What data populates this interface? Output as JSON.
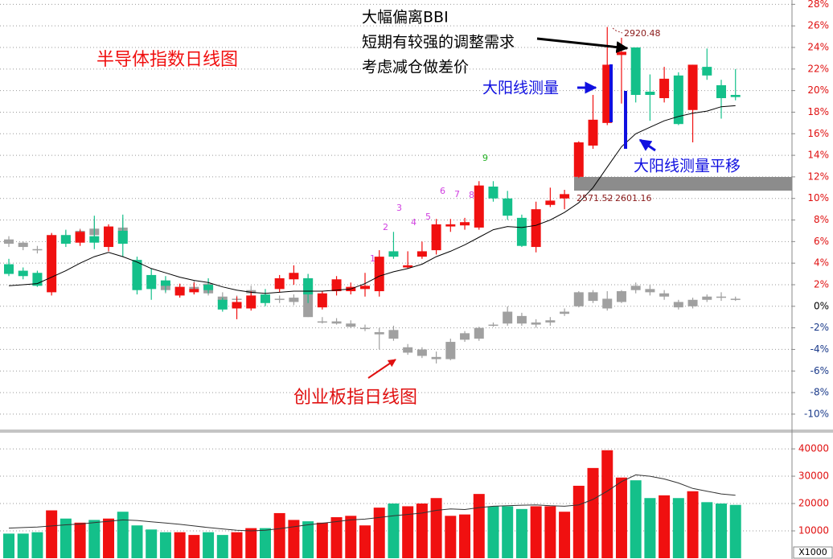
{
  "chart_data": [
    {
      "type": "candlestick",
      "title": "半导体指数日线图",
      "annotations": [
        "大幅偏离BBI",
        "短期有较强的调整需求",
        "考虑减仓做差价",
        "大阳线测量",
        "大阳线测量平移",
        "创业板指日线图"
      ],
      "td_counts": [
        1,
        2,
        3,
        4,
        5,
        6,
        7,
        8,
        9
      ],
      "price_labels": [
        2920.48,
        2571.52,
        2601.16
      ],
      "ylim": [
        -11.5,
        28.4
      ],
      "yticks": [
        {
          "value": 28,
          "label": "28%"
        },
        {
          "value": 26,
          "label": "26%"
        },
        {
          "value": 24,
          "label": "24%"
        },
        {
          "value": 22,
          "label": "22%"
        },
        {
          "value": 20,
          "label": "20%"
        },
        {
          "value": 18,
          "label": "18%"
        },
        {
          "value": 16,
          "label": "16%"
        },
        {
          "value": 14,
          "label": "14%"
        },
        {
          "value": 12,
          "label": "12%"
        },
        {
          "value": 10,
          "label": "10%"
        },
        {
          "value": 8,
          "label": "8%"
        },
        {
          "value": 6,
          "label": "6%"
        },
        {
          "value": 4,
          "label": "4%"
        },
        {
          "value": 2,
          "label": "2%"
        },
        {
          "value": 0,
          "label": "0%"
        },
        {
          "value": -2,
          "label": "-2%"
        },
        {
          "value": -4,
          "label": "-4%"
        },
        {
          "value": -6,
          "label": "-6%"
        },
        {
          "value": -8,
          "label": "-8%"
        },
        {
          "value": -10,
          "label": "-10%"
        }
      ],
      "grid": true,
      "series": [
        {
          "type": "candlestick",
          "up_color": "#a0a0a0",
          "down_color": "#a0a0a0",
          "open": [
            6.2,
            5.9,
            5.2,
            5.4,
            6.6,
            6.3,
            7.2,
            6.6,
            7.3,
            4.0,
            2.5,
            2.0,
            1.8,
            1.5,
            2.1,
            0.9,
            0.7,
            1.5,
            0.8,
            0.7,
            0.8,
            2.6,
            -1.4,
            -1.4,
            -1.6,
            -2.0,
            -2.4,
            -2.2,
            -3.8,
            -4.0,
            -4.7,
            -4.9,
            -3.1,
            -2.0,
            -1.7,
            -0.5,
            -0.9,
            -1.5,
            -1.3,
            -0.5,
            0.0,
            1.3,
            0.7,
            0.4,
            1.9,
            1.6,
            1.2,
            0.4,
            0.0,
            0.6,
            0.9,
            0.7
          ],
          "high": [
            6.5,
            6.0,
            5.6,
            6.7,
            7.0,
            7.2,
            8.1,
            7.3,
            8.2,
            4.3,
            2.9,
            2.4,
            2.0,
            2.4,
            2.5,
            1.3,
            1.0,
            1.9,
            1.2,
            1.0,
            1.1,
            3.0,
            -1.0,
            -1.1,
            -1.3,
            -1.7,
            -2.0,
            -1.8,
            -3.5,
            -3.8,
            -4.2,
            -3.0,
            -2.3,
            -1.9,
            -1.5,
            0.0,
            -0.6,
            -1.2,
            -1.0,
            -0.2,
            1.4,
            1.5,
            1.4,
            1.5,
            2.2,
            2.0,
            1.5,
            0.6,
            0.8,
            1.1,
            1.3,
            0.9
          ],
          "low": [
            5.5,
            5.2,
            4.9,
            5.0,
            5.8,
            6.0,
            6.4,
            6.2,
            5.7,
            2.0,
            1.7,
            1.2,
            1.1,
            1.1,
            1.0,
            0.3,
            0.1,
            0.8,
            0.1,
            0.3,
            0.1,
            -1.0,
            -1.6,
            -1.7,
            -2.0,
            -2.3,
            -4.0,
            -3.2,
            -4.5,
            -4.8,
            -5.3,
            -5.0,
            -3.3,
            -3.2,
            -1.9,
            -1.8,
            -1.8,
            -2.0,
            -1.8,
            -0.9,
            -0.1,
            0.3,
            -0.4,
            0.3,
            1.2,
            1.0,
            0.6,
            -0.3,
            -0.2,
            0.4,
            0.5,
            0.5
          ],
          "close": [
            5.8,
            5.5,
            5.3,
            6.6,
            6.0,
            7.0,
            6.6,
            7.0,
            6.0,
            2.2,
            2.0,
            1.5,
            1.3,
            1.8,
            1.2,
            0.5,
            0.6,
            1.2,
            0.4,
            0.6,
            0.4,
            -1.0,
            -1.4,
            -1.6,
            -1.9,
            -2.1,
            -2.6,
            -3.0,
            -4.3,
            -4.6,
            -4.9,
            -3.3,
            -2.5,
            -3.0,
            -1.8,
            -1.6,
            -1.6,
            -1.7,
            -1.5,
            -0.7,
            1.3,
            0.5,
            -0.2,
            1.4,
            1.5,
            1.3,
            0.9,
            -0.1,
            0.6,
            0.9,
            0.8,
            0.6
          ]
        },
        {
          "type": "candlestick",
          "up_color": "#f01010",
          "down_color": "#14c08a",
          "open": [
            3.9,
            3.3,
            3.1,
            1.3,
            6.6,
            5.9,
            6.5,
            5.5,
            7.0,
            4.3,
            2.9,
            2.4,
            1.0,
            1.3,
            2.0,
            0.6,
            -0.2,
            -0.2,
            1.1,
            1.6,
            2.5,
            2.6,
            -0.1,
            1.4,
            1.4,
            1.6,
            1.4,
            5.1,
            3.6,
            4.6,
            5.2,
            7.4,
            7.5,
            7.3,
            11.1,
            10.0,
            8.2,
            5.5,
            9.4,
            10.0,
            12.0,
            14.9,
            17.0,
            23.3,
            24.0,
            19.9,
            19.3,
            21.4,
            18.2,
            22.2,
            20.5,
            19.6
          ],
          "high": [
            4.4,
            3.6,
            3.3,
            6.8,
            7.1,
            7.1,
            8.4,
            7.6,
            8.5,
            4.6,
            3.5,
            2.8,
            2.1,
            2.2,
            2.6,
            0.8,
            0.9,
            1.4,
            1.6,
            2.9,
            3.8,
            3.0,
            1.4,
            2.8,
            2.2,
            3.1,
            5.2,
            6.9,
            5.1,
            6.0,
            8.1,
            8.1,
            8.2,
            11.6,
            11.6,
            10.7,
            8.5,
            9.7,
            11.0,
            10.8,
            15.3,
            19.6,
            25.9,
            24.9,
            24.0,
            21.5,
            22.2,
            21.7,
            22.4,
            23.9,
            21.0,
            22.0
          ],
          "low": [
            2.8,
            2.5,
            1.8,
            1.0,
            5.5,
            5.6,
            5.3,
            5.1,
            4.6,
            1.1,
            0.6,
            1.3,
            0.8,
            1.1,
            1.2,
            -0.5,
            -1.2,
            -0.4,
            0.0,
            1.3,
            2.0,
            0.3,
            -0.3,
            1.0,
            1.1,
            0.9,
            0.9,
            4.4,
            3.5,
            4.4,
            4.8,
            6.9,
            7.1,
            7.1,
            9.7,
            8.0,
            5.5,
            5.0,
            9.2,
            9.0,
            11.9,
            14.6,
            16.8,
            18.8,
            18.9,
            17.2,
            18.9,
            16.8,
            15.2,
            21.0,
            17.4,
            19.1
          ],
          "close": [
            3.0,
            2.8,
            1.9,
            6.6,
            5.8,
            6.9,
            5.9,
            7.4,
            5.8,
            1.5,
            1.6,
            1.9,
            1.8,
            1.6,
            1.5,
            -0.3,
            0.4,
            1.0,
            0.3,
            2.6,
            3.1,
            1.1,
            1.2,
            2.5,
            1.8,
            1.9,
            4.6,
            4.6,
            3.8,
            5.1,
            7.6,
            7.6,
            7.8,
            11.2,
            10.0,
            8.4,
            5.6,
            9.0,
            9.8,
            10.4,
            15.2,
            17.3,
            22.4,
            23.6,
            19.6,
            19.6,
            21.1,
            16.9,
            22.4,
            21.4,
            19.3,
            19.4
          ]
        },
        {
          "type": "line",
          "color": "#000000",
          "values": [
            1.9,
            2.0,
            2.1,
            2.7,
            3.3,
            4.0,
            4.6,
            5.0,
            4.6,
            4.1,
            3.5,
            3.1,
            2.7,
            2.4,
            2.2,
            1.8,
            1.5,
            1.3,
            1.2,
            1.3,
            1.4,
            1.4,
            1.4,
            1.5,
            1.6,
            2.1,
            2.8,
            3.2,
            3.5,
            3.9,
            4.6,
            5.1,
            5.7,
            6.4,
            7.1,
            7.4,
            7.3,
            7.5,
            8.0,
            8.7,
            9.6,
            11.0,
            12.9,
            14.8,
            16.0,
            16.6,
            17.2,
            17.6,
            17.9,
            18.1,
            18.5,
            18.6
          ]
        }
      ]
    },
    {
      "type": "bar",
      "unit_label": "X1000",
      "ylim": [
        0,
        46200
      ],
      "yticks": [
        10000,
        20000,
        30000,
        40000
      ],
      "up_color": "#f01010",
      "down_color": "#14c08a",
      "values": [
        9000,
        9000,
        9500,
        17500,
        14500,
        13000,
        14000,
        14500,
        17000,
        12000,
        10500,
        9500,
        9500,
        8500,
        9500,
        8500,
        9500,
        11000,
        11000,
        16500,
        14000,
        13500,
        13000,
        15000,
        15500,
        12000,
        18500,
        20000,
        19000,
        20000,
        22000,
        15500,
        16000,
        23500,
        19000,
        19000,
        18000,
        19000,
        19000,
        17000,
        26500,
        33000,
        39500,
        29500,
        28500,
        22000,
        23000,
        22000,
        24500,
        20500,
        20000,
        19500
      ],
      "line": {
        "color": "#333333",
        "values": [
          11000,
          11200,
          11400,
          11800,
          12200,
          12500,
          13000,
          13500,
          14000,
          13800,
          13300,
          12900,
          12400,
          11800,
          11200,
          10700,
          10200,
          10000,
          10200,
          10800,
          11500,
          12200,
          12800,
          13400,
          14000,
          14300,
          14900,
          15500,
          16000,
          16500,
          17500,
          18000,
          17800,
          18500,
          19000,
          19200,
          19400,
          19500,
          19200,
          19000,
          19500,
          21500,
          24500,
          28000,
          30500,
          30000,
          29000,
          27500,
          25500,
          24500,
          23500,
          23000
        ]
      }
    }
  ]
}
